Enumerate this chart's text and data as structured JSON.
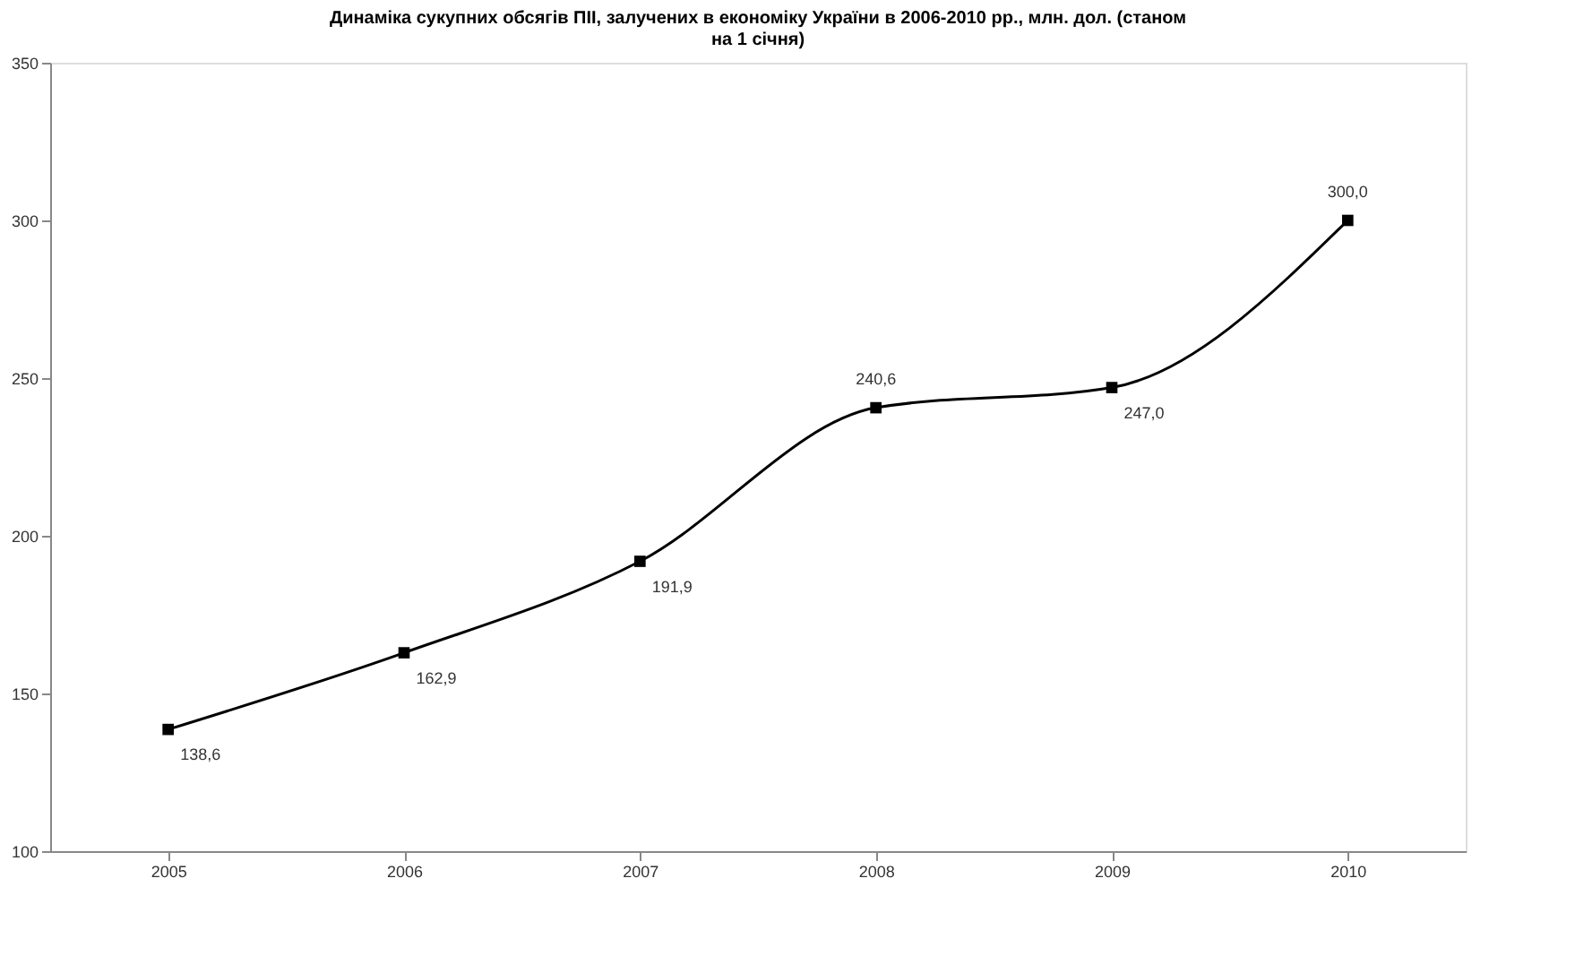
{
  "chart_data": {
    "type": "line",
    "title": "Динаміка сукупних обсягів ПІІ, залучених в економіку України в 2006-2010 рр., млн. дол. (станом на 1 січня)",
    "categories": [
      "2005",
      "2006",
      "2007",
      "2008",
      "2009",
      "2010"
    ],
    "series": [
      {
        "color": "#000000",
        "values": [
          138.6,
          162.9,
          191.9,
          240.6,
          247.0,
          300.0
        ],
        "value_labels": [
          "138,6",
          "162,9",
          "191,9",
          "240,6",
          "247,0",
          "300,0"
        ]
      }
    ],
    "ylim": [
      100,
      350
    ],
    "yticks": [
      100,
      150,
      200,
      250,
      300,
      350
    ],
    "grid": false,
    "marker": "square",
    "line_style": "solid"
  }
}
